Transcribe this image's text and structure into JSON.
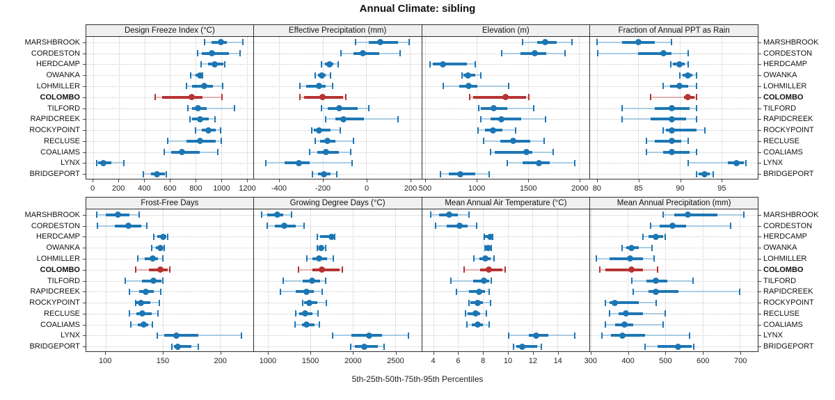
{
  "title": "Annual Climate: sibling",
  "caption": "5th-25th-50th-75th-95th Percentiles",
  "highlight_site": "COLOMBO",
  "sites": [
    "MARSHBROOK",
    "CORDESTON",
    "HERDCAMP",
    "OWANKA",
    "LOHMILLER",
    "COLOMBO",
    "TILFORD",
    "RAPIDCREEK",
    "ROCKYPOINT",
    "RECLUSE",
    "COALIAMS",
    "LYNX",
    "BRIDGEPORT"
  ],
  "colors": {
    "series": "#1d76b4",
    "series_light": "#a9cbe3",
    "highlight": "#b73333",
    "highlight_light": "#e2b3b3",
    "grid": "#c9c9c9",
    "border": "#2e2e2e",
    "strip_bg": "#f0f0f0",
    "tick": "#444444"
  },
  "chart_data": {
    "type": "dotplot-trellis",
    "rows": 2,
    "cols": 4,
    "percentiles": [
      5,
      25,
      50,
      75,
      95
    ],
    "note": "values per site are [p5,p25,p50,p75,p95]; site order matches sites list",
    "panels": [
      {
        "label": "Design Freeze Index (°C)",
        "xmin": -55,
        "xmax": 1250,
        "ticks": [
          0,
          200,
          400,
          600,
          800,
          1000,
          1200
        ],
        "values": [
          [
            870,
            925,
            1000,
            1045,
            1170
          ],
          [
            815,
            850,
            930,
            1060,
            1150
          ],
          [
            845,
            895,
            950,
            1015,
            1030
          ],
          [
            760,
            800,
            835,
            845,
            855
          ],
          [
            730,
            775,
            865,
            935,
            1010
          ],
          [
            485,
            540,
            770,
            855,
            1005
          ],
          [
            740,
            770,
            820,
            885,
            1105
          ],
          [
            755,
            775,
            835,
            905,
            950
          ],
          [
            800,
            850,
            900,
            960,
            995
          ],
          [
            580,
            730,
            835,
            955,
            1000
          ],
          [
            555,
            610,
            695,
            830,
            975
          ],
          [
            25,
            35,
            80,
            140,
            240
          ],
          [
            390,
            450,
            495,
            560,
            570
          ]
        ]
      },
      {
        "label": "Effective Precipitation (mm)",
        "xmin": -515,
        "xmax": 252,
        "ticks": [
          -400,
          -200,
          0,
          200
        ],
        "values": [
          [
            -50,
            10,
            65,
            145,
            195
          ],
          [
            -115,
            -60,
            -15,
            60,
            155
          ],
          [
            -205,
            -190,
            -170,
            -150,
            -130
          ],
          [
            -235,
            -220,
            -205,
            -185,
            -165
          ],
          [
            -305,
            -275,
            -215,
            -185,
            -155
          ],
          [
            -305,
            -285,
            -200,
            -105,
            -95
          ],
          [
            -205,
            -175,
            -125,
            -40,
            10
          ],
          [
            -185,
            -140,
            -105,
            -10,
            145
          ],
          [
            -250,
            -240,
            -215,
            -165,
            -120
          ],
          [
            -235,
            -210,
            -178,
            -140,
            -60
          ],
          [
            -260,
            -225,
            -185,
            -125,
            -70
          ],
          [
            -460,
            -375,
            -310,
            -260,
            -65
          ],
          [
            -245,
            -220,
            -195,
            -165,
            -135
          ]
        ]
      },
      {
        "label": "Elevation (m)",
        "xmin": 470,
        "xmax": 2100,
        "ticks": [
          500,
          1000,
          1500,
          2000
        ],
        "values": [
          [
            1450,
            1590,
            1670,
            1780,
            1930
          ],
          [
            1245,
            1425,
            1565,
            1680,
            1860
          ],
          [
            545,
            575,
            670,
            905,
            990
          ],
          [
            860,
            875,
            920,
            990,
            1040
          ],
          [
            675,
            830,
            925,
            1010,
            1310
          ],
          [
            935,
            970,
            1285,
            1480,
            1510
          ],
          [
            1020,
            1045,
            1165,
            1300,
            1555
          ],
          [
            1040,
            1135,
            1240,
            1435,
            1670
          ],
          [
            1015,
            1080,
            1160,
            1255,
            1380
          ],
          [
            1070,
            1235,
            1360,
            1525,
            1655
          ],
          [
            1135,
            1180,
            1485,
            1540,
            1745
          ],
          [
            1300,
            1445,
            1610,
            1715,
            1955
          ],
          [
            650,
            730,
            840,
            990,
            1120
          ]
        ]
      },
      {
        "label": "Fraction of Annual PPT as Rain",
        "xmin": 79.2,
        "xmax": 99.4,
        "ticks": [
          80,
          85,
          90,
          95
        ],
        "values": [
          [
            80,
            83,
            85,
            87,
            89
          ],
          [
            80.1,
            85,
            88,
            89,
            91
          ],
          [
            88.9,
            89.2,
            90,
            90.6,
            91
          ],
          [
            90,
            90.3,
            91,
            91.5,
            92
          ],
          [
            88,
            88.8,
            90,
            91,
            92
          ],
          [
            86.5,
            90.5,
            91,
            91.8,
            92
          ],
          [
            83,
            87,
            89,
            91.2,
            92
          ],
          [
            83,
            86.5,
            89,
            90.8,
            92
          ],
          [
            88,
            88.3,
            89,
            92,
            93
          ],
          [
            86,
            87,
            89,
            90.2,
            91
          ],
          [
            86,
            88,
            89,
            91.2,
            92
          ],
          [
            91,
            95.8,
            96.8,
            97.7,
            98
          ],
          [
            92,
            92.3,
            93,
            93.6,
            94
          ]
        ]
      },
      {
        "label": "Frost-Free Days",
        "xmin": 83,
        "xmax": 229,
        "ticks": [
          100,
          150,
          200
        ],
        "values": [
          [
            92,
            100,
            111,
            121,
            129
          ],
          [
            93,
            108,
            120,
            131,
            136
          ],
          [
            142,
            145,
            150,
            153,
            154
          ],
          [
            140,
            144,
            148,
            150,
            151
          ],
          [
            128,
            134,
            141,
            146,
            150
          ],
          [
            126,
            138,
            148,
            154,
            156
          ],
          [
            117,
            132,
            142,
            149,
            150
          ],
          [
            121,
            129,
            135,
            142,
            148
          ],
          [
            126,
            127,
            131,
            139,
            147
          ],
          [
            121,
            127,
            132,
            140,
            146
          ],
          [
            122,
            128,
            133,
            137,
            141
          ],
          [
            145,
            151,
            162,
            181,
            219
          ],
          [
            158,
            160,
            163,
            175,
            181
          ]
        ]
      },
      {
        "label": "Growing Degree Days (°C)",
        "xmin": 835,
        "xmax": 2810,
        "ticks": [
          1000,
          1500,
          2000,
          2500
        ],
        "values": [
          [
            930,
            990,
            1115,
            1180,
            1280
          ],
          [
            990,
            1085,
            1195,
            1330,
            1425
          ],
          [
            1585,
            1620,
            1750,
            1780,
            1790
          ],
          [
            1585,
            1600,
            1625,
            1655,
            1680
          ],
          [
            1460,
            1525,
            1605,
            1700,
            1770
          ],
          [
            1360,
            1530,
            1640,
            1850,
            1875
          ],
          [
            1180,
            1410,
            1520,
            1615,
            1680
          ],
          [
            1145,
            1330,
            1455,
            1545,
            1645
          ],
          [
            1410,
            1430,
            1490,
            1585,
            1690
          ],
          [
            1330,
            1370,
            1440,
            1530,
            1595
          ],
          [
            1325,
            1400,
            1460,
            1550,
            1610
          ],
          [
            1765,
            1985,
            2195,
            2350,
            2655
          ],
          [
            1980,
            2030,
            2135,
            2295,
            2375
          ]
        ]
      },
      {
        "label": "Mean Annual Air Temperature (°C)",
        "xmin": 3.1,
        "xmax": 16.6,
        "ticks": [
          4,
          6,
          8,
          10,
          12,
          14
        ],
        "values": [
          [
            3.8,
            4.5,
            5.3,
            6.0,
            6.9
          ],
          [
            4.2,
            5.1,
            6.1,
            6.8,
            7.5
          ],
          [
            8.1,
            8.2,
            8.6,
            8.7,
            8.8
          ],
          [
            8.2,
            8.3,
            8.4,
            8.6,
            8.7
          ],
          [
            7.3,
            7.7,
            8.2,
            8.6,
            8.9
          ],
          [
            6.5,
            7.8,
            8.5,
            9.6,
            9.8
          ],
          [
            5.4,
            7.2,
            8.1,
            8.5,
            8.7
          ],
          [
            5.9,
            6.9,
            7.7,
            8.2,
            8.5
          ],
          [
            6.9,
            7.0,
            7.6,
            8.0,
            8.6
          ],
          [
            6.6,
            6.8,
            7.4,
            7.8,
            8.3
          ],
          [
            6.7,
            7.1,
            7.6,
            8.0,
            8.5
          ],
          [
            10.1,
            11.7,
            12.3,
            13.3,
            15.4
          ],
          [
            10.5,
            10.7,
            11.2,
            12.4,
            12.7
          ]
        ]
      },
      {
        "label": "Mean Annual Precipitation (mm)",
        "xmin": 299,
        "xmax": 748,
        "ticks": [
          300,
          400,
          500,
          600,
          700
        ],
        "values": [
          [
            495,
            525,
            560,
            640,
            710
          ],
          [
            460,
            485,
            520,
            555,
            675
          ],
          [
            440,
            455,
            475,
            495,
            500
          ],
          [
            385,
            395,
            410,
            430,
            465
          ],
          [
            315,
            350,
            405,
            440,
            470
          ],
          [
            325,
            340,
            410,
            440,
            480
          ],
          [
            410,
            450,
            475,
            505,
            575
          ],
          [
            415,
            455,
            475,
            535,
            700
          ],
          [
            340,
            350,
            365,
            430,
            475
          ],
          [
            350,
            375,
            395,
            440,
            500
          ],
          [
            340,
            365,
            390,
            415,
            495
          ],
          [
            330,
            355,
            385,
            445,
            565
          ],
          [
            445,
            480,
            535,
            570,
            577
          ]
        ]
      }
    ]
  }
}
